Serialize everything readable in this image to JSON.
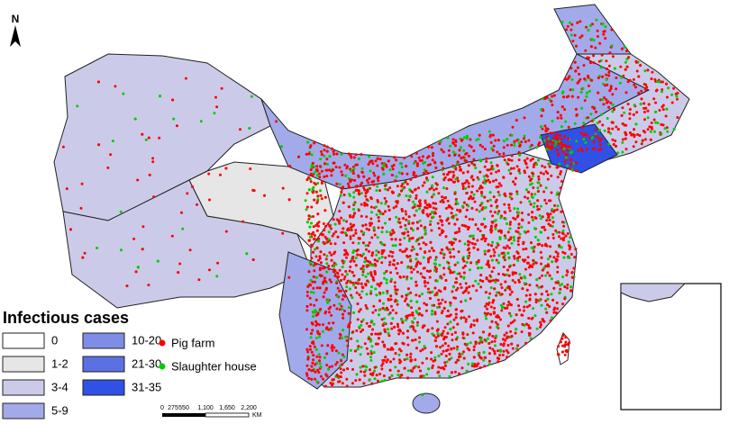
{
  "legend": {
    "title": "Infectious cases",
    "classes": [
      {
        "label": "0",
        "color": "#ffffff"
      },
      {
        "label": "1-2",
        "color": "#e6e6e6"
      },
      {
        "label": "3-4",
        "color": "#cbcbe9"
      },
      {
        "label": "5-9",
        "color": "#a3aaea"
      },
      {
        "label": "10-20",
        "color": "#7f8de6"
      },
      {
        "label": "21-30",
        "color": "#5b70e2"
      },
      {
        "label": "31-35",
        "color": "#3150e6"
      }
    ],
    "points": [
      {
        "label": "Pig farm",
        "color": "#ff0000"
      },
      {
        "label": "Slaughter house",
        "color": "#00cc00"
      }
    ]
  },
  "north_arrow": "N",
  "scale_bar": {
    "ticks": [
      "0",
      "275",
      "550",
      "1,100",
      "1,650",
      "2,200"
    ],
    "unit": "KM"
  }
}
